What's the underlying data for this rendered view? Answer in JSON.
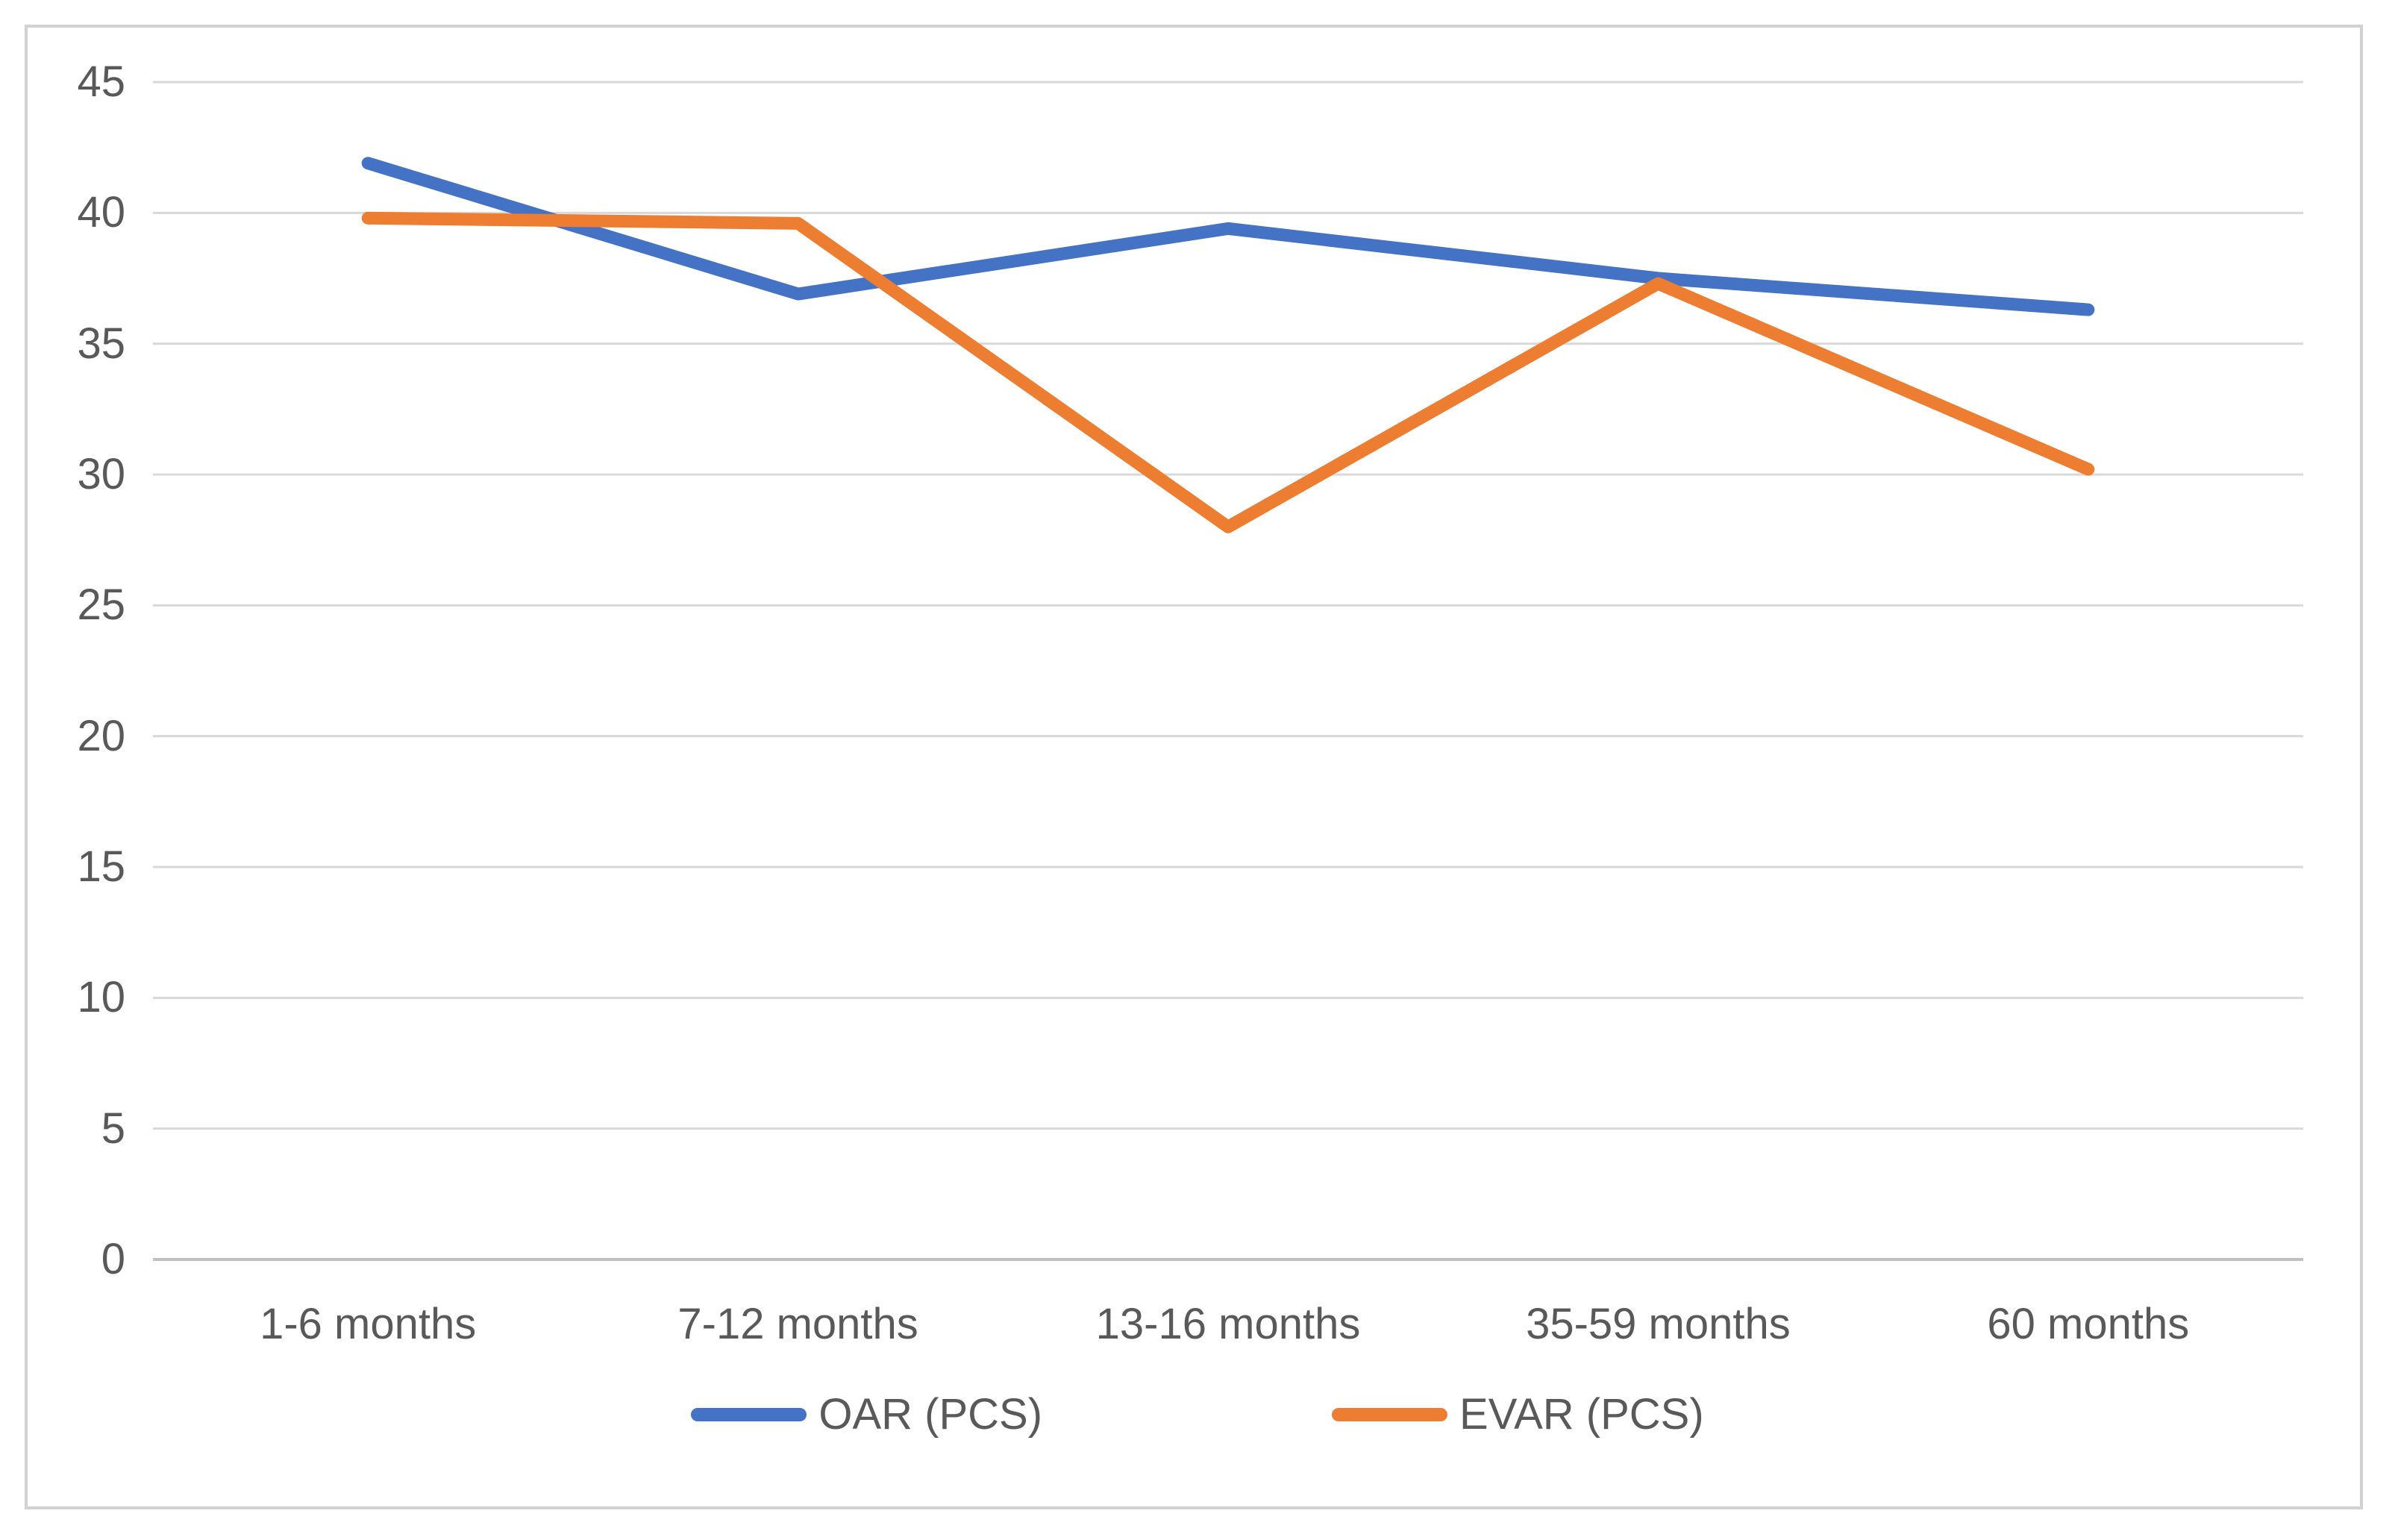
{
  "chart_data": {
    "type": "line",
    "title": "",
    "xlabel": "",
    "ylabel": "",
    "categories": [
      "1-6 months",
      "7-12 months",
      "13-16 months",
      "35-59 months",
      "60 months"
    ],
    "series": [
      {
        "name": "OAR (PCS)",
        "color": "#4472C4",
        "values": [
          41.9,
          36.9,
          39.4,
          37.5,
          36.3
        ]
      },
      {
        "name": "EVAR (PCS)",
        "color": "#ED7D31",
        "values": [
          39.8,
          39.6,
          28.0,
          37.3,
          30.2
        ]
      }
    ],
    "ylim": [
      0,
      45
    ],
    "y_ticks": [
      0,
      5,
      10,
      15,
      20,
      25,
      30,
      35,
      40,
      45
    ],
    "grid": true,
    "legend_position": "bottom"
  },
  "colors": {
    "background": "#FFFFFF",
    "border": "#D2D2D2",
    "gridline": "#D9D9D9",
    "zero_axis_line": "#C1C1C1",
    "tick_text": "#595959"
  }
}
